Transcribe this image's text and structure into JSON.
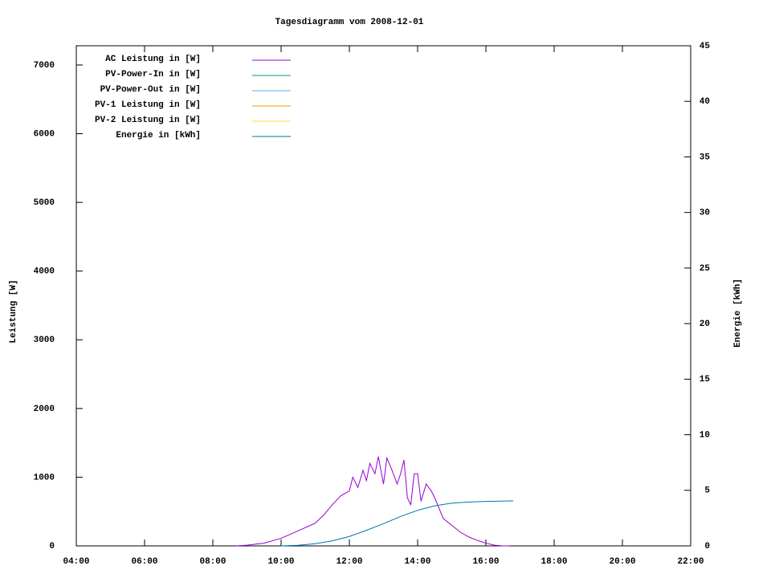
{
  "chart_data": {
    "type": "line",
    "title": "Tagesdiagramm vom 2008-12-01",
    "ylabel": "Leistung [W]",
    "y2label": "Energie [kWh]",
    "xlim": [
      4,
      22
    ],
    "xticks": [
      {
        "value": 4,
        "label": "04:00"
      },
      {
        "value": 6,
        "label": "06:00"
      },
      {
        "value": 8,
        "label": "08:00"
      },
      {
        "value": 10,
        "label": "10:00"
      },
      {
        "value": 12,
        "label": "12:00"
      },
      {
        "value": 14,
        "label": "14:00"
      },
      {
        "value": 16,
        "label": "16:00"
      },
      {
        "value": 18,
        "label": "18:00"
      },
      {
        "value": 20,
        "label": "20:00"
      },
      {
        "value": 22,
        "label": "22:00"
      }
    ],
    "ylim": [
      0,
      7280
    ],
    "yticks": [
      0,
      1000,
      2000,
      3000,
      4000,
      5000,
      6000,
      7000
    ],
    "y2lim": [
      0,
      45
    ],
    "y2ticks": [
      0,
      5,
      10,
      15,
      20,
      25,
      30,
      35,
      40,
      45
    ],
    "legend": "upper-left",
    "grid": false,
    "series": [
      {
        "name": "AC Leistung in [W]",
        "color": "#9400d3",
        "x": [
          8.67,
          9.0,
          9.5,
          10.0,
          10.5,
          11.0,
          11.25,
          11.5,
          11.75,
          12.0,
          12.1,
          12.25,
          12.4,
          12.5,
          12.6,
          12.75,
          12.85,
          13.0,
          13.1,
          13.25,
          13.4,
          13.5,
          13.6,
          13.7,
          13.8,
          13.9,
          14.0,
          14.1,
          14.25,
          14.4,
          14.5,
          14.75,
          15.0,
          15.25,
          15.5,
          15.75,
          16.0,
          16.25,
          16.5,
          16.7
        ],
        "values": [
          0,
          10,
          40,
          110,
          220,
          330,
          450,
          600,
          730,
          800,
          1000,
          850,
          1100,
          950,
          1200,
          1050,
          1300,
          900,
          1280,
          1100,
          900,
          1050,
          1250,
          700,
          600,
          1050,
          1050,
          650,
          900,
          800,
          700,
          400,
          300,
          200,
          130,
          80,
          40,
          10,
          0,
          0
        ]
      },
      {
        "name": "PV-Power-In in [W]",
        "color": "#009e73",
        "x": [],
        "values": []
      },
      {
        "name": "PV-Power-Out in [W]",
        "color": "#56b4e9",
        "x": [],
        "values": []
      },
      {
        "name": "PV-1 Leistung in [W]",
        "color": "#e69f00",
        "x": [],
        "values": []
      },
      {
        "name": "PV-2 Leistung in [W]",
        "color": "#f0e442",
        "x": [],
        "values": []
      },
      {
        "name": "Energie in [kWh]",
        "color": "#0072b2",
        "axis": "y2",
        "x": [
          10.0,
          10.5,
          11.0,
          11.5,
          12.0,
          12.5,
          13.0,
          13.5,
          14.0,
          14.5,
          15.0,
          15.5,
          16.0,
          16.8
        ],
        "values": [
          0,
          0.05,
          0.2,
          0.45,
          0.85,
          1.4,
          2.0,
          2.65,
          3.2,
          3.6,
          3.85,
          3.95,
          4.0,
          4.05
        ]
      }
    ]
  }
}
